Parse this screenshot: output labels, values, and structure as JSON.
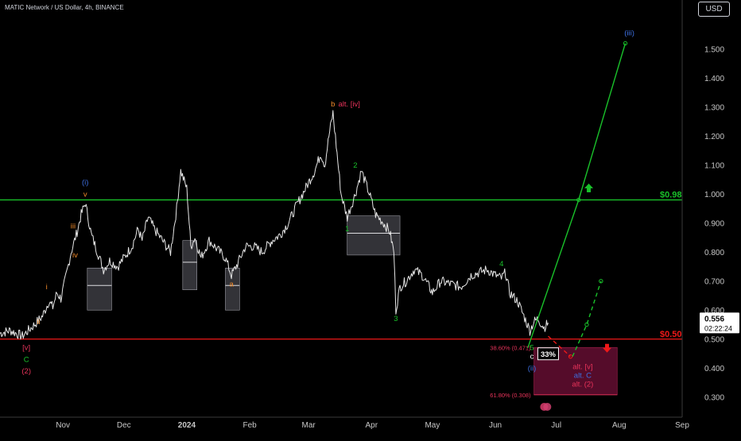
{
  "header": {
    "title": "MATIC Network / US Dollar, 4h, BINANCE",
    "currency": "USD"
  },
  "colors": {
    "bg": "#000000",
    "price": "#e6e6e6",
    "green": "#19c12a",
    "red": "#f01818",
    "blue": "#3d6fe0",
    "orange": "#f08a2a",
    "pink": "#e8335a",
    "white": "#ffffff",
    "axis_text": "#c8c8c8",
    "zone": "#5a0d2c"
  },
  "chart_data": {
    "type": "line",
    "x_ticks": [
      "Nov",
      "Dec",
      "2024",
      "Feb",
      "Mar",
      "Apr",
      "May",
      "Jun",
      "Jul",
      "Aug",
      "Sep"
    ],
    "y_ticks": [
      "1.500",
      "1.400",
      "1.300",
      "1.200",
      "1.100",
      "1.000",
      "0.900",
      "0.800",
      "0.700",
      "0.600",
      "0.500",
      "0.400",
      "0.300"
    ],
    "y_range": [
      0.25,
      1.62
    ],
    "series": [
      {
        "points": [
          [
            "2023-10-01",
            0.52
          ],
          [
            "2023-10-06",
            0.53
          ],
          [
            "2023-10-12",
            0.51
          ],
          [
            "2023-10-18",
            0.55
          ],
          [
            "2023-10-22",
            0.58
          ],
          [
            "2023-10-25",
            0.63
          ],
          [
            "2023-10-27",
            0.61
          ],
          [
            "2023-10-29",
            0.66
          ],
          [
            "2023-10-31",
            0.64
          ],
          [
            "2023-11-02",
            0.7
          ],
          [
            "2023-11-05",
            0.8
          ],
          [
            "2023-11-08",
            0.87
          ],
          [
            "2023-11-10",
            0.93
          ],
          [
            "2023-11-12",
            0.97
          ],
          [
            "2023-11-15",
            0.86
          ],
          [
            "2023-11-18",
            0.8
          ],
          [
            "2023-11-21",
            0.74
          ],
          [
            "2023-11-24",
            0.77
          ],
          [
            "2023-11-28",
            0.75
          ],
          [
            "2023-12-02",
            0.79
          ],
          [
            "2023-12-05",
            0.82
          ],
          [
            "2023-12-08",
            0.88
          ],
          [
            "2023-12-10",
            0.84
          ],
          [
            "2023-12-13",
            0.92
          ],
          [
            "2023-12-16",
            0.88
          ],
          [
            "2023-12-20",
            0.84
          ],
          [
            "2023-12-24",
            0.8
          ],
          [
            "2023-12-27",
            0.95
          ],
          [
            "2023-12-29",
            1.08
          ],
          [
            "2024-01-01",
            1.02
          ],
          [
            "2024-01-03",
            0.82
          ],
          [
            "2024-01-05",
            0.85
          ],
          [
            "2024-01-08",
            0.78
          ],
          [
            "2024-01-12",
            0.84
          ],
          [
            "2024-01-16",
            0.81
          ],
          [
            "2024-01-20",
            0.78
          ],
          [
            "2024-01-23",
            0.72
          ],
          [
            "2024-01-26",
            0.76
          ],
          [
            "2024-01-30",
            0.82
          ],
          [
            "2024-02-03",
            0.82
          ],
          [
            "2024-02-07",
            0.8
          ],
          [
            "2024-02-12",
            0.84
          ],
          [
            "2024-02-16",
            0.86
          ],
          [
            "2024-02-20",
            0.9
          ],
          [
            "2024-02-24",
            0.96
          ],
          [
            "2024-02-27",
            1.0
          ],
          [
            "2024-03-01",
            1.04
          ],
          [
            "2024-03-04",
            1.08
          ],
          [
            "2024-03-07",
            1.14
          ],
          [
            "2024-03-09",
            1.1
          ],
          [
            "2024-03-11",
            1.2
          ],
          [
            "2024-03-13",
            1.28
          ],
          [
            "2024-03-15",
            1.14
          ],
          [
            "2024-03-17",
            1.0
          ],
          [
            "2024-03-20",
            0.92
          ],
          [
            "2024-03-24",
            1.0
          ],
          [
            "2024-03-27",
            1.08
          ],
          [
            "2024-03-31",
            1.0
          ],
          [
            "2024-04-03",
            0.93
          ],
          [
            "2024-04-07",
            0.9
          ],
          [
            "2024-04-10",
            0.87
          ],
          [
            "2024-04-12",
            0.8
          ],
          [
            "2024-04-13",
            0.6
          ],
          [
            "2024-04-15",
            0.68
          ],
          [
            "2024-04-18",
            0.7
          ],
          [
            "2024-04-22",
            0.74
          ],
          [
            "2024-04-26",
            0.72
          ],
          [
            "2024-05-01",
            0.66
          ],
          [
            "2024-05-05",
            0.7
          ],
          [
            "2024-05-10",
            0.69
          ],
          [
            "2024-05-15",
            0.68
          ],
          [
            "2024-05-20",
            0.72
          ],
          [
            "2024-05-24",
            0.73
          ],
          [
            "2024-05-28",
            0.74
          ],
          [
            "2024-06-01",
            0.72
          ],
          [
            "2024-06-04",
            0.71
          ],
          [
            "2024-06-06",
            0.73
          ],
          [
            "2024-06-08",
            0.66
          ],
          [
            "2024-06-12",
            0.63
          ],
          [
            "2024-06-15",
            0.58
          ],
          [
            "2024-06-18",
            0.53
          ],
          [
            "2024-06-20",
            0.56
          ],
          [
            "2024-06-22",
            0.57
          ],
          [
            "2024-06-25",
            0.54
          ],
          [
            "2024-06-27",
            0.556
          ]
        ]
      }
    ],
    "levels": [
      {
        "label": "$0.98",
        "value": 0.98,
        "color": "green"
      },
      {
        "label": "$0.50",
        "value": 0.5,
        "color": "red"
      }
    ],
    "zones": [
      {
        "x0": "2023-11-13",
        "x1": "2023-11-25",
        "y0": 0.6,
        "y1": 0.745,
        "mid": 0.685
      },
      {
        "x0": "2023-12-30",
        "x1": "2024-01-06",
        "y0": 0.67,
        "y1": 0.84,
        "mid": 0.765
      },
      {
        "x0": "2024-01-20",
        "x1": "2024-01-27",
        "y0": 0.6,
        "y1": 0.745,
        "mid": 0.685
      },
      {
        "x0": "2024-03-20",
        "x1": "2024-04-15",
        "y0": 0.79,
        "y1": 0.925,
        "mid": 0.865
      }
    ],
    "target_zone": {
      "x0": "2024-06-20",
      "x1": "2024-07-31",
      "y0": 0.308,
      "y1": 0.471
    },
    "fib_labels": [
      {
        "text": "38.60% (0.471)",
        "value": 0.471
      },
      {
        "text": "61.80% (0.308)",
        "value": 0.308
      }
    ],
    "price_tag": {
      "price": "0.556",
      "countdown": "02:22:24",
      "value": 0.556
    },
    "percent_badge": "33%",
    "projections": [
      {
        "style": "solid",
        "color": "green",
        "points": [
          [
            "2024-06-17",
            0.47
          ],
          [
            "2024-07-12",
            0.98
          ],
          [
            "2024-08-04",
            1.52
          ]
        ]
      },
      {
        "style": "dashed",
        "color": "red",
        "points": [
          [
            "2024-06-27",
            0.51
          ],
          [
            "2024-07-08",
            0.44
          ]
        ]
      },
      {
        "style": "dashed",
        "color": "green",
        "points": [
          [
            "2024-07-09",
            0.44
          ],
          [
            "2024-07-16",
            0.55
          ],
          [
            "2024-07-23",
            0.7
          ]
        ]
      }
    ],
    "arrows": [
      {
        "direction": "up",
        "color": "green",
        "at": [
          "2024-07-17",
          1.02
        ]
      },
      {
        "direction": "down",
        "color": "red",
        "at": [
          "2024-07-26",
          0.47
        ]
      }
    ],
    "annotations": [
      {
        "text": "(iii)",
        "color": "blue",
        "at": [
          "2024-08-06",
          1.555
        ]
      },
      {
        "text": "b",
        "color": "orange",
        "at": [
          "2024-03-13",
          1.31
        ]
      },
      {
        "text": "alt. [iv]",
        "color": "pink",
        "at": [
          "2024-03-21",
          1.31
        ]
      },
      {
        "text": "2",
        "color": "green",
        "at": [
          "2024-03-24",
          1.1
        ]
      },
      {
        "text": "(i)",
        "color": "blue",
        "at": [
          "2023-11-12",
          1.04
        ]
      },
      {
        "text": "v",
        "color": "orange",
        "at": [
          "2023-11-12",
          1.0
        ]
      },
      {
        "text": "iii",
        "color": "orange",
        "at": [
          "2023-11-06",
          0.89
        ]
      },
      {
        "text": "1",
        "color": "green",
        "at": [
          "2024-03-20",
          0.88
        ]
      },
      {
        "text": "iv",
        "color": "orange",
        "at": [
          "2023-11-07",
          0.79
        ]
      },
      {
        "text": "i",
        "color": "orange",
        "at": [
          "2023-10-24",
          0.68
        ]
      },
      {
        "text": "a",
        "color": "orange",
        "at": [
          "2024-01-23",
          0.69
        ]
      },
      {
        "text": "4",
        "color": "green",
        "at": [
          "2024-06-04",
          0.76
        ]
      },
      {
        "text": "3",
        "color": "green",
        "at": [
          "2024-04-13",
          0.57
        ]
      },
      {
        "text": "ii",
        "color": "orange",
        "at": [
          "2023-10-20",
          0.56
        ]
      },
      {
        "text": "5",
        "color": "green",
        "at": [
          "2024-06-19",
          0.47
        ]
      },
      {
        "text": "c",
        "color": "white",
        "at": [
          "2024-06-19",
          0.44
        ]
      },
      {
        "text": "(ii)",
        "color": "blue",
        "at": [
          "2024-06-19",
          0.4
        ]
      },
      {
        "text": "[v]",
        "color": "pink",
        "at": [
          "2023-10-14",
          0.47
        ]
      },
      {
        "text": "C",
        "color": "green",
        "at": [
          "2023-10-14",
          0.43
        ]
      },
      {
        "text": "(2)",
        "color": "pink",
        "at": [
          "2023-10-14",
          0.39
        ]
      },
      {
        "text": "alt. [v]",
        "color": "pink",
        "at": [
          "2024-07-14",
          0.405
        ]
      },
      {
        "text": "alt. C",
        "color": "blue",
        "at": [
          "2024-07-14",
          0.375
        ]
      },
      {
        "text": "alt. (2)",
        "color": "pink",
        "at": [
          "2024-07-14",
          0.345
        ]
      }
    ]
  }
}
